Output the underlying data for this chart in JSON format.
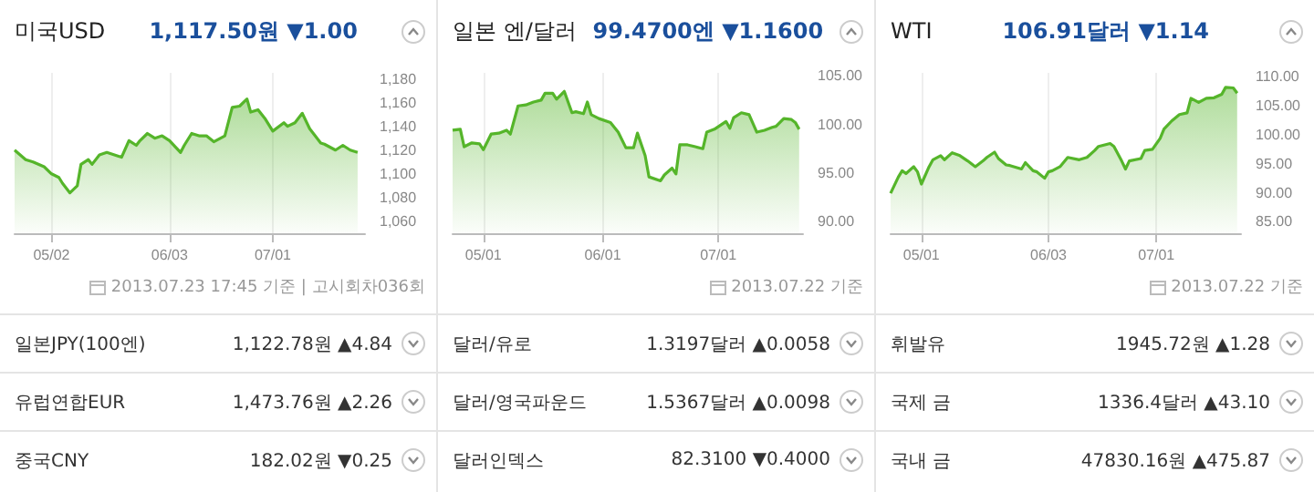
{
  "chart_data": [
    {
      "type": "area",
      "title": "미국USD",
      "subtitle": "1,117.50원 ▼1.00",
      "color": "#55b52a",
      "grid": "x",
      "x": [
        "2013-04-22",
        "2013-04-25",
        "2013-04-27",
        "2013-04-30",
        "2013-05-02",
        "2013-05-04",
        "2013-05-05",
        "2013-05-07",
        "2013-05-09",
        "2013-05-10",
        "2013-05-12",
        "2013-05-13",
        "2013-05-15",
        "2013-05-17",
        "2013-05-20",
        "2013-05-21",
        "2013-05-23",
        "2013-05-25",
        "2013-05-26",
        "2013-05-28",
        "2013-05-30",
        "2013-06-01",
        "2013-06-03",
        "2013-06-06",
        "2013-06-07",
        "2013-06-09",
        "2013-06-11",
        "2013-06-13",
        "2013-06-15",
        "2013-06-18",
        "2013-06-20",
        "2013-06-22",
        "2013-06-24",
        "2013-06-25",
        "2013-06-27",
        "2013-06-29",
        "2013-07-01",
        "2013-07-04",
        "2013-07-05",
        "2013-07-07",
        "2013-07-09",
        "2013-07-11",
        "2013-07-14",
        "2013-07-15",
        "2013-07-18",
        "2013-07-20",
        "2013-07-22",
        "2013-07-24"
      ],
      "values": [
        1120,
        1112,
        1110,
        1106,
        1100,
        1097,
        1092,
        1084,
        1090,
        1108,
        1112,
        1108,
        1116,
        1118,
        1115,
        1114,
        1128,
        1124,
        1128,
        1134,
        1130,
        1132,
        1128,
        1118,
        1124,
        1134,
        1132,
        1132,
        1127,
        1132,
        1156,
        1157,
        1163,
        1152,
        1154,
        1146,
        1136,
        1143,
        1140,
        1143,
        1151,
        1138,
        1126,
        1125,
        1120,
        1124,
        1120,
        1118
      ],
      "xlim": [
        "2013-04-22",
        "2013-07-26"
      ],
      "xticks": [
        {
          "value": "2013-05-02",
          "label": "05/02"
        },
        {
          "value": "2013-06-03",
          "label": "06/03"
        },
        {
          "value": "2013-07-01",
          "label": "07/01"
        }
      ],
      "ylim": [
        1050,
        1185
      ],
      "yticks": [
        {
          "value": 1060,
          "label": "1,060"
        },
        {
          "value": 1080,
          "label": "1,080"
        },
        {
          "value": 1100,
          "label": "1,100"
        },
        {
          "value": 1120,
          "label": "1,120"
        },
        {
          "value": 1140,
          "label": "1,140"
        },
        {
          "value": 1160,
          "label": "1,160"
        },
        {
          "value": 1180,
          "label": "1,180"
        }
      ],
      "annotations": [
        "2013.07.23 17:45 기준 | 고시회차036회",
        "일본JPY(100엔)",
        "1,122.78원 ▲4.84",
        "유럽연합EUR",
        "1,473.76원 ▲2.26",
        "중국CNY",
        "182.02원 ▼0.25"
      ]
    },
    {
      "type": "area",
      "title": "일본 엔/달러",
      "subtitle": "99.4700엔 ▼1.1600",
      "color": "#55b52a",
      "grid": "x",
      "x": [
        "2013-04-23",
        "2013-04-25",
        "2013-04-26",
        "2013-04-28",
        "2013-04-30",
        "2013-05-01",
        "2013-05-03",
        "2013-05-05",
        "2013-05-07",
        "2013-05-08",
        "2013-05-10",
        "2013-05-12",
        "2013-05-14",
        "2013-05-16",
        "2013-05-17",
        "2013-05-19",
        "2013-05-20",
        "2013-05-22",
        "2013-05-24",
        "2013-05-25",
        "2013-05-27",
        "2013-05-28",
        "2013-05-29",
        "2013-05-31",
        "2013-06-03",
        "2013-06-05",
        "2013-06-07",
        "2013-06-09",
        "2013-06-10",
        "2013-06-12",
        "2013-06-13",
        "2013-06-16",
        "2013-06-17",
        "2013-06-19",
        "2013-06-20",
        "2013-06-21",
        "2013-06-23",
        "2013-06-25",
        "2013-06-27",
        "2013-06-28",
        "2013-06-30",
        "2013-07-03",
        "2013-07-04",
        "2013-07-05",
        "2013-07-07",
        "2013-07-09",
        "2013-07-11",
        "2013-07-13",
        "2013-07-15",
        "2013-07-16",
        "2013-07-18",
        "2013-07-20",
        "2013-07-21",
        "2013-07-22"
      ],
      "values": [
        99.4,
        99.5,
        97.7,
        98.1,
        98.0,
        97.4,
        99.0,
        99.1,
        99.4,
        99.0,
        101.9,
        102.0,
        102.3,
        102.5,
        103.2,
        103.2,
        102.6,
        103.4,
        101.2,
        101.3,
        101.1,
        102.3,
        101.0,
        100.6,
        100.2,
        99.2,
        97.6,
        97.6,
        99.1,
        96.8,
        94.6,
        94.2,
        94.8,
        95.5,
        94.9,
        97.9,
        97.9,
        97.7,
        97.5,
        99.2,
        99.5,
        100.3,
        99.6,
        100.7,
        101.2,
        101.0,
        99.2,
        99.4,
        99.7,
        99.8,
        100.6,
        100.5,
        100.2,
        99.5
      ],
      "xlim": [
        "2013-04-23",
        "2013-07-23"
      ],
      "xticks": [
        {
          "value": "2013-05-01",
          "label": "05/01"
        },
        {
          "value": "2013-06-01",
          "label": "06/01"
        },
        {
          "value": "2013-07-01",
          "label": "07/01"
        }
      ],
      "ylim": [
        88.8,
        105.3
      ],
      "yticks": [
        {
          "value": 90,
          "label": "90.00"
        },
        {
          "value": 95,
          "label": "95.00"
        },
        {
          "value": 100,
          "label": "100.00"
        },
        {
          "value": 105,
          "label": "105.00"
        }
      ],
      "annotations": [
        "2013.07.22 기준",
        "달러/유로",
        "1.3197달러 ▲0.0058",
        "달러/영국파운드",
        "1.5367달러 ▲0.0098",
        "달러인덱스",
        "82.3100 ▼0.4000"
      ]
    },
    {
      "type": "area",
      "title": "WTI",
      "subtitle": "106.91달러 ▼1.14",
      "color": "#55b52a",
      "grid": "x",
      "x": [
        "2013-04-23",
        "2013-04-25",
        "2013-04-26",
        "2013-04-27",
        "2013-04-29",
        "2013-04-30",
        "2013-05-01",
        "2013-05-03",
        "2013-05-04",
        "2013-05-06",
        "2013-05-07",
        "2013-05-09",
        "2013-05-11",
        "2013-05-13",
        "2013-05-15",
        "2013-05-17",
        "2013-05-18",
        "2013-05-20",
        "2013-05-21",
        "2013-05-23",
        "2013-05-24",
        "2013-05-27",
        "2013-05-28",
        "2013-05-30",
        "2013-05-31",
        "2013-06-02",
        "2013-06-03",
        "2013-06-04",
        "2013-06-06",
        "2013-06-08",
        "2013-06-11",
        "2013-06-13",
        "2013-06-15",
        "2013-06-16",
        "2013-06-19",
        "2013-06-20",
        "2013-06-22",
        "2013-06-23",
        "2013-06-24",
        "2013-06-27",
        "2013-06-28",
        "2013-06-30",
        "2013-07-02",
        "2013-07-03",
        "2013-07-05",
        "2013-07-07",
        "2013-07-09",
        "2013-07-10",
        "2013-07-12",
        "2013-07-14",
        "2013-07-16",
        "2013-07-18",
        "2013-07-19",
        "2013-07-21",
        "2013-07-22"
      ],
      "values": [
        89.9,
        92.7,
        93.8,
        93.3,
        94.5,
        93.6,
        91.5,
        94.5,
        95.7,
        96.4,
        95.7,
        96.9,
        96.4,
        95.5,
        94.5,
        95.5,
        96.1,
        97.0,
        95.9,
        94.8,
        94.7,
        94.1,
        95.2,
        93.8,
        93.6,
        92.5,
        93.6,
        93.8,
        94.5,
        96.1,
        95.7,
        96.1,
        97.3,
        98.0,
        98.5,
        98.0,
        95.5,
        94.1,
        95.5,
        95.9,
        97.3,
        97.5,
        99.4,
        101.0,
        102.4,
        103.5,
        103.8,
        106.3,
        105.6,
        106.3,
        106.4,
        107.0,
        108.2,
        108.1,
        107.2
      ],
      "xlim": [
        "2013-04-23",
        "2013-07-23"
      ],
      "xticks": [
        {
          "value": "2013-05-01",
          "label": "05/01"
        },
        {
          "value": "2013-06-03",
          "label": "06/03"
        },
        {
          "value": "2013-07-01",
          "label": "07/01"
        }
      ],
      "ylim": [
        83,
        110.7
      ],
      "yticks": [
        {
          "value": 85,
          "label": "85.00"
        },
        {
          "value": 90,
          "label": "90.00"
        },
        {
          "value": 95,
          "label": "95.00"
        },
        {
          "value": 100,
          "label": "100.00"
        },
        {
          "value": 105,
          "label": "105.00"
        },
        {
          "value": 110,
          "label": "110.00"
        }
      ],
      "annotations": [
        "2013.07.22 기준",
        "휘발유",
        "1945.72원 ▲1.28",
        "국제 금",
        "1336.4달러 ▲43.10",
        "국내 금",
        "47830.16원 ▲475.87"
      ]
    }
  ]
}
